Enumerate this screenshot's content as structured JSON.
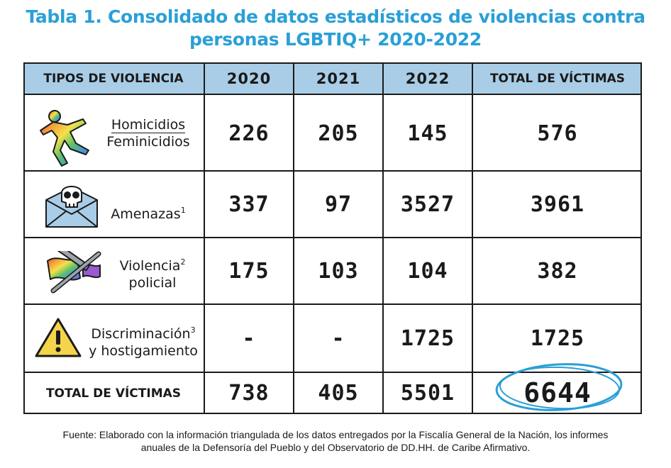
{
  "title": {
    "line1": "Tabla 1. Consolidado de datos estadísticos de violencias contra",
    "line2": "personas LGBTIQ+ 2020-2022"
  },
  "table": {
    "headers": {
      "type": "TIPOS DE VIOLENCIA",
      "y2020": "2020",
      "y2021": "2021",
      "y2022": "2022",
      "total": "TOTAL DE VÍCTIMAS"
    },
    "rows": [
      {
        "label_line1": "Homicidios",
        "label_line2": "Feminicidios",
        "icon": "body-outline-icon",
        "v2020": "226",
        "v2021": "205",
        "v2022": "145",
        "total": "576"
      },
      {
        "label_line1": "Amenazas",
        "sup": "1",
        "icon": "skull-envelope-icon",
        "v2020": "337",
        "v2021": "97",
        "v2022": "3527",
        "total": "3961"
      },
      {
        "label_line1": "Violencia",
        "sup": "2",
        "label_line2": "policial",
        "icon": "rainbow-flag-baton-icon",
        "v2020": "175",
        "v2021": "103",
        "v2022": "104",
        "total": "382"
      },
      {
        "label_line1": "Discriminación",
        "sup": "3",
        "label_line2": "y hostigamiento",
        "icon": "warning-triangle-icon",
        "v2020": "-",
        "v2021": "-",
        "v2022": "1725",
        "total": "1725"
      }
    ],
    "totals": {
      "label": "TOTAL DE VÍCTIMAS",
      "v2020": "738",
      "v2021": "405",
      "v2022": "5501",
      "total": "6644"
    }
  },
  "colors": {
    "title": "#2a9fd6",
    "header_band": "#a9cde6",
    "circle": "#2a9fd6"
  },
  "source": {
    "line1": "Fuente: Elaborado con la información triangulada de los datos entregados por la Fiscalía General de la Nación, los informes",
    "line2": "anuales de la Defensoría del Pueblo y del Observatorio de DD.HH. de Caribe Afirmativo."
  }
}
